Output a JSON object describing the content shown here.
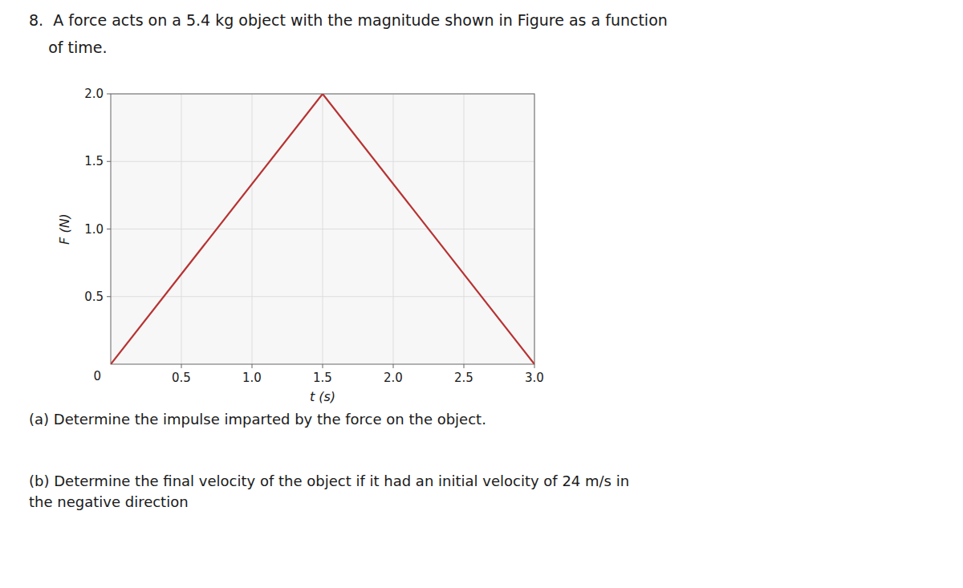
{
  "chart_data": {
    "type": "line",
    "title": "8.  A force acts on a 5.4 kg object with the magnitude shown in Figure as a function\n    of time.",
    "x": [
      0,
      1.5,
      3.0
    ],
    "values": [
      0,
      2.0,
      0
    ],
    "color": "#b83232",
    "x_label": "t (s)",
    "y_label": "F (N)",
    "xlim": [
      0,
      3.0
    ],
    "ylim": [
      0,
      2.0
    ],
    "xticks": [
      0.5,
      {
        "value": 1.0,
        "label": "1.0"
      },
      1.5,
      {
        "value": 2.0,
        "label": "2.0"
      },
      2.5,
      {
        "value": 3.0,
        "label": "3.0"
      }
    ],
    "yticks": [
      0.5,
      {
        "value": 1.0,
        "label": "1.0"
      },
      1.5,
      {
        "value": 2.0,
        "label": "2.0"
      }
    ],
    "grid": true,
    "annotations": [
      "0",
      "(a) Determine the impulse imparted by the force on the object.",
      "(b) Determine the final velocity of the object if it had an initial velocity of 24 m/s in\nthe negative direction"
    ]
  }
}
